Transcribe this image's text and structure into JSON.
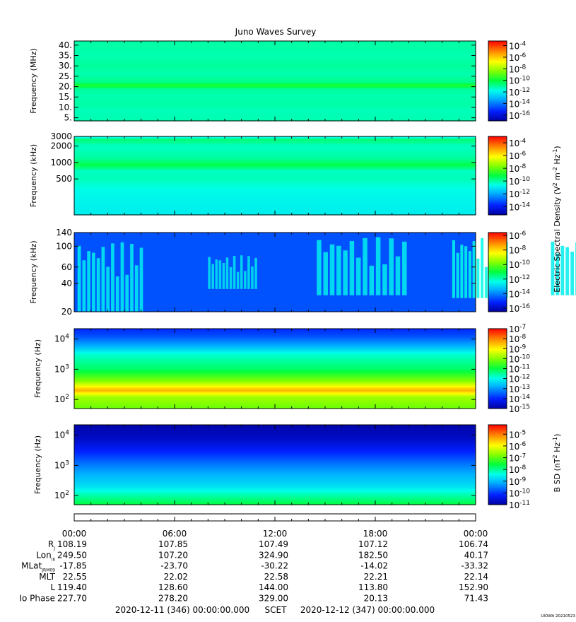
{
  "title": "Juno Waves Survey",
  "footer": {
    "start": "2020-12-11 (346) 00:00:00.000",
    "scet": "SCET",
    "end": "2020-12-12 (347) 00:00:00.000",
    "stamp": "UIOWA 20210523"
  },
  "colorbar_labels": {
    "e": "Electric Spectral Density (V",
    "b": "B SD (nT"
  },
  "chart_data": [
    {
      "type": "heatmap",
      "name": "panel-mhz",
      "ylabel": "Frequency (MHz)",
      "yscale": "linear",
      "ylim": [
        3.5,
        42
      ],
      "yticks": [
        5,
        10,
        15,
        20,
        25,
        30,
        35,
        40
      ],
      "yticklabels": [
        "5.",
        "10.",
        "15.",
        "20.",
        "25.",
        "30.",
        "35.",
        "40."
      ],
      "colorbar": {
        "exponents": [
          -4,
          -6,
          -8,
          -10,
          -12,
          -14,
          -16
        ],
        "range_exp": [
          -17,
          -3.2
        ]
      },
      "levels_exp": [
        {
          "freq": 4,
          "value": -11.2
        },
        {
          "freq": 8,
          "value": -11.3
        },
        {
          "freq": 12,
          "value": -11.1
        },
        {
          "freq": 16,
          "value": -11.2
        },
        {
          "freq": 19,
          "value": -11.0
        },
        {
          "freq": 20.5,
          "value": -9.6
        },
        {
          "freq": 22,
          "value": -10.8
        },
        {
          "freq": 26,
          "value": -11.2
        },
        {
          "freq": 30,
          "value": -11.0
        },
        {
          "freq": 35,
          "value": -11.2
        },
        {
          "freq": 41,
          "value": -11.1
        }
      ]
    },
    {
      "type": "heatmap",
      "name": "panel-khz-high",
      "ylabel": "Frequency (kHz)",
      "yscale": "log",
      "ylim": [
        110,
        3000
      ],
      "yticks": [
        500,
        1000,
        2000,
        3000
      ],
      "yticklabels": [
        "500",
        "1000",
        "2000",
        "3000"
      ],
      "colorbar": {
        "exponents": [
          -4,
          -6,
          -8,
          -10,
          -12,
          -14
        ],
        "range_exp": [
          -15.3,
          -3
        ]
      },
      "levels_exp": [
        {
          "freq": 120,
          "value": -10.9
        },
        {
          "freq": 300,
          "value": -10.7
        },
        {
          "freq": 500,
          "value": -10.2
        },
        {
          "freq": 700,
          "value": -10.3
        },
        {
          "freq": 900,
          "value": -9.2
        },
        {
          "freq": 1200,
          "value": -10.0
        },
        {
          "freq": 2000,
          "value": -10.3
        },
        {
          "freq": 2600,
          "value": -9.6
        },
        {
          "freq": 2900,
          "value": -10.6
        }
      ]
    },
    {
      "type": "heatmap",
      "name": "panel-khz-low",
      "ylabel": "Frequency (kHz)",
      "yscale": "log",
      "ylim": [
        20,
        140
      ],
      "yticks": [
        20,
        40,
        60,
        100,
        140
      ],
      "yticklabels": [
        "20",
        "40",
        "60",
        "100",
        "140"
      ],
      "colorbar": {
        "exponents": [
          -6,
          -8,
          -10,
          -12,
          -14,
          -16
        ],
        "range_exp": [
          -16.5,
          -5.6
        ]
      },
      "background_exp": -14.6,
      "bursts": [
        {
          "t0": 0.2,
          "t1": 4.2,
          "f0": 20,
          "f1": 110,
          "value": -12.6
        },
        {
          "t0": 8.0,
          "t1": 11.0,
          "f0": 35,
          "f1": 80,
          "value": -12.7
        },
        {
          "t0": 14.5,
          "t1": 20.0,
          "f0": 30,
          "f1": 125,
          "value": -12.6
        },
        {
          "t0": 22.6,
          "t1": 26.0,
          "f0": 28,
          "f1": 125,
          "value": -12.4
        },
        {
          "t0": 28.5,
          "t1": 32.6,
          "f0": 30,
          "f1": 120,
          "value": -12.6
        },
        {
          "t0": 37.0,
          "t1": 41.0,
          "f0": 32,
          "f1": 138,
          "value": -12.2
        }
      ]
    },
    {
      "type": "heatmap",
      "name": "panel-hz",
      "ylabel": "Frequency (Hz)",
      "yscale": "log",
      "ylim": [
        50,
        22000
      ],
      "yticks": [
        100,
        1000,
        10000
      ],
      "yticklabels": [
        "10^2",
        "10^3",
        "10^4"
      ],
      "colorbar": {
        "exponents": [
          -7,
          -8,
          -9,
          -10,
          -11,
          -12,
          -13,
          -14,
          -15
        ],
        "range_exp": [
          -15,
          -7
        ]
      },
      "levels_exp": [
        {
          "freq": 50,
          "value": -10.2
        },
        {
          "freq": 120,
          "value": -9.8
        },
        {
          "freq": 200,
          "value": -8.4
        },
        {
          "freq": 400,
          "value": -10.0
        },
        {
          "freq": 1000,
          "value": -11.2
        },
        {
          "freq": 3000,
          "value": -11.8
        },
        {
          "freq": 6000,
          "value": -12.8
        },
        {
          "freq": 12000,
          "value": -13.6
        },
        {
          "freq": 22000,
          "value": -14.0
        }
      ]
    },
    {
      "type": "heatmap",
      "name": "panel-bsd",
      "ylabel": "Frequency (Hz)",
      "yscale": "log",
      "ylim": [
        50,
        22000
      ],
      "yticks": [
        100,
        1000,
        10000
      ],
      "yticklabels": [
        "10^2",
        "10^3",
        "10^4"
      ],
      "colorbar": {
        "exponents": [
          -5,
          -6,
          -7,
          -8,
          -9,
          -10,
          -11
        ],
        "range_exp": [
          -11,
          -4.2
        ]
      },
      "levels_exp": [
        {
          "freq": 50,
          "value": -7.6
        },
        {
          "freq": 100,
          "value": -8.1
        },
        {
          "freq": 200,
          "value": -8.7
        },
        {
          "freq": 500,
          "value": -9.1
        },
        {
          "freq": 1000,
          "value": -9.5
        },
        {
          "freq": 3000,
          "value": -10.2
        },
        {
          "freq": 8000,
          "value": -10.7
        },
        {
          "freq": 22000,
          "value": -10.9
        }
      ]
    }
  ],
  "time_axis": {
    "hours": [
      0,
      6,
      12,
      18,
      24
    ],
    "labels": [
      "00:00",
      "06:00",
      "12:00",
      "18:00",
      "00:00"
    ]
  },
  "ephemeris": [
    {
      "label": "R",
      "sub": "J",
      "values": [
        "108.19",
        "107.85",
        "107.49",
        "107.12",
        "106.74"
      ]
    },
    {
      "label": "Lon",
      "sub": "III",
      "values": [
        "249.50",
        "107.20",
        "324.90",
        "182.50",
        "40.17"
      ]
    },
    {
      "label": "MLat",
      "sub": "JRM09",
      "values": [
        "-17.85",
        "-23.70",
        "-30.22",
        "-14.02",
        "-33.32"
      ]
    },
    {
      "label": "MLT",
      "sub": "",
      "values": [
        "22.55",
        "22.02",
        "22.58",
        "22.21",
        "22.14"
      ]
    },
    {
      "label": "L",
      "sub": "",
      "values": [
        "119.40",
        "128.60",
        "144.00",
        "113.80",
        "152.90"
      ]
    },
    {
      "label": "Io Phase",
      "sub": "",
      "values": [
        "227.70",
        "278.20",
        "329.00",
        "20.13",
        "71.43"
      ]
    }
  ]
}
